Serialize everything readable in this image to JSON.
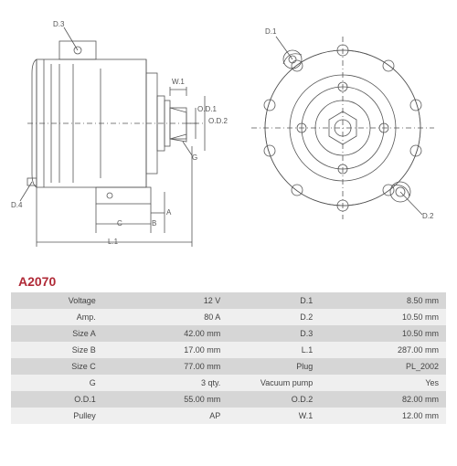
{
  "part_number": "A2070",
  "diagram": {
    "stroke": "#555555",
    "stroke_width": 0.8,
    "background": "#ffffff",
    "label_fontsize": 8,
    "left": {
      "labels": {
        "D3": "D.3",
        "D4": "D.4",
        "W1": "W.1",
        "OD1": "O.D.1",
        "OD2": "O.D.2",
        "G": "G",
        "A": "A",
        "B": "B",
        "C": "C",
        "L1": "L.1"
      }
    },
    "right": {
      "labels": {
        "D1": "D.1",
        "D2": "D.2"
      }
    }
  },
  "specs": {
    "rows": [
      {
        "l1": "Voltage",
        "v1": "12 V",
        "l2": "D.1",
        "v2": "8.50 mm"
      },
      {
        "l1": "Amp.",
        "v1": "80 A",
        "l2": "D.2",
        "v2": "10.50 mm"
      },
      {
        "l1": "Size A",
        "v1": "42.00 mm",
        "l2": "D.3",
        "v2": "10.50 mm"
      },
      {
        "l1": "Size B",
        "v1": "17.00 mm",
        "l2": "L.1",
        "v2": "287.00 mm"
      },
      {
        "l1": "Size C",
        "v1": "77.00 mm",
        "l2": "Plug",
        "v2": "PL_2002"
      },
      {
        "l1": "G",
        "v1": "3 qty.",
        "l2": "Vacuum pump",
        "v2": "Yes"
      },
      {
        "l1": "O.D.1",
        "v1": "55.00 mm",
        "l2": "O.D.2",
        "v2": "82.00 mm"
      },
      {
        "l1": "Pulley",
        "v1": "AP",
        "l2": "W.1",
        "v2": "12.00 mm"
      }
    ],
    "odd_bg": "#d6d6d6",
    "even_bg": "#efefef",
    "fontsize": 9,
    "text_color": "#444444"
  }
}
